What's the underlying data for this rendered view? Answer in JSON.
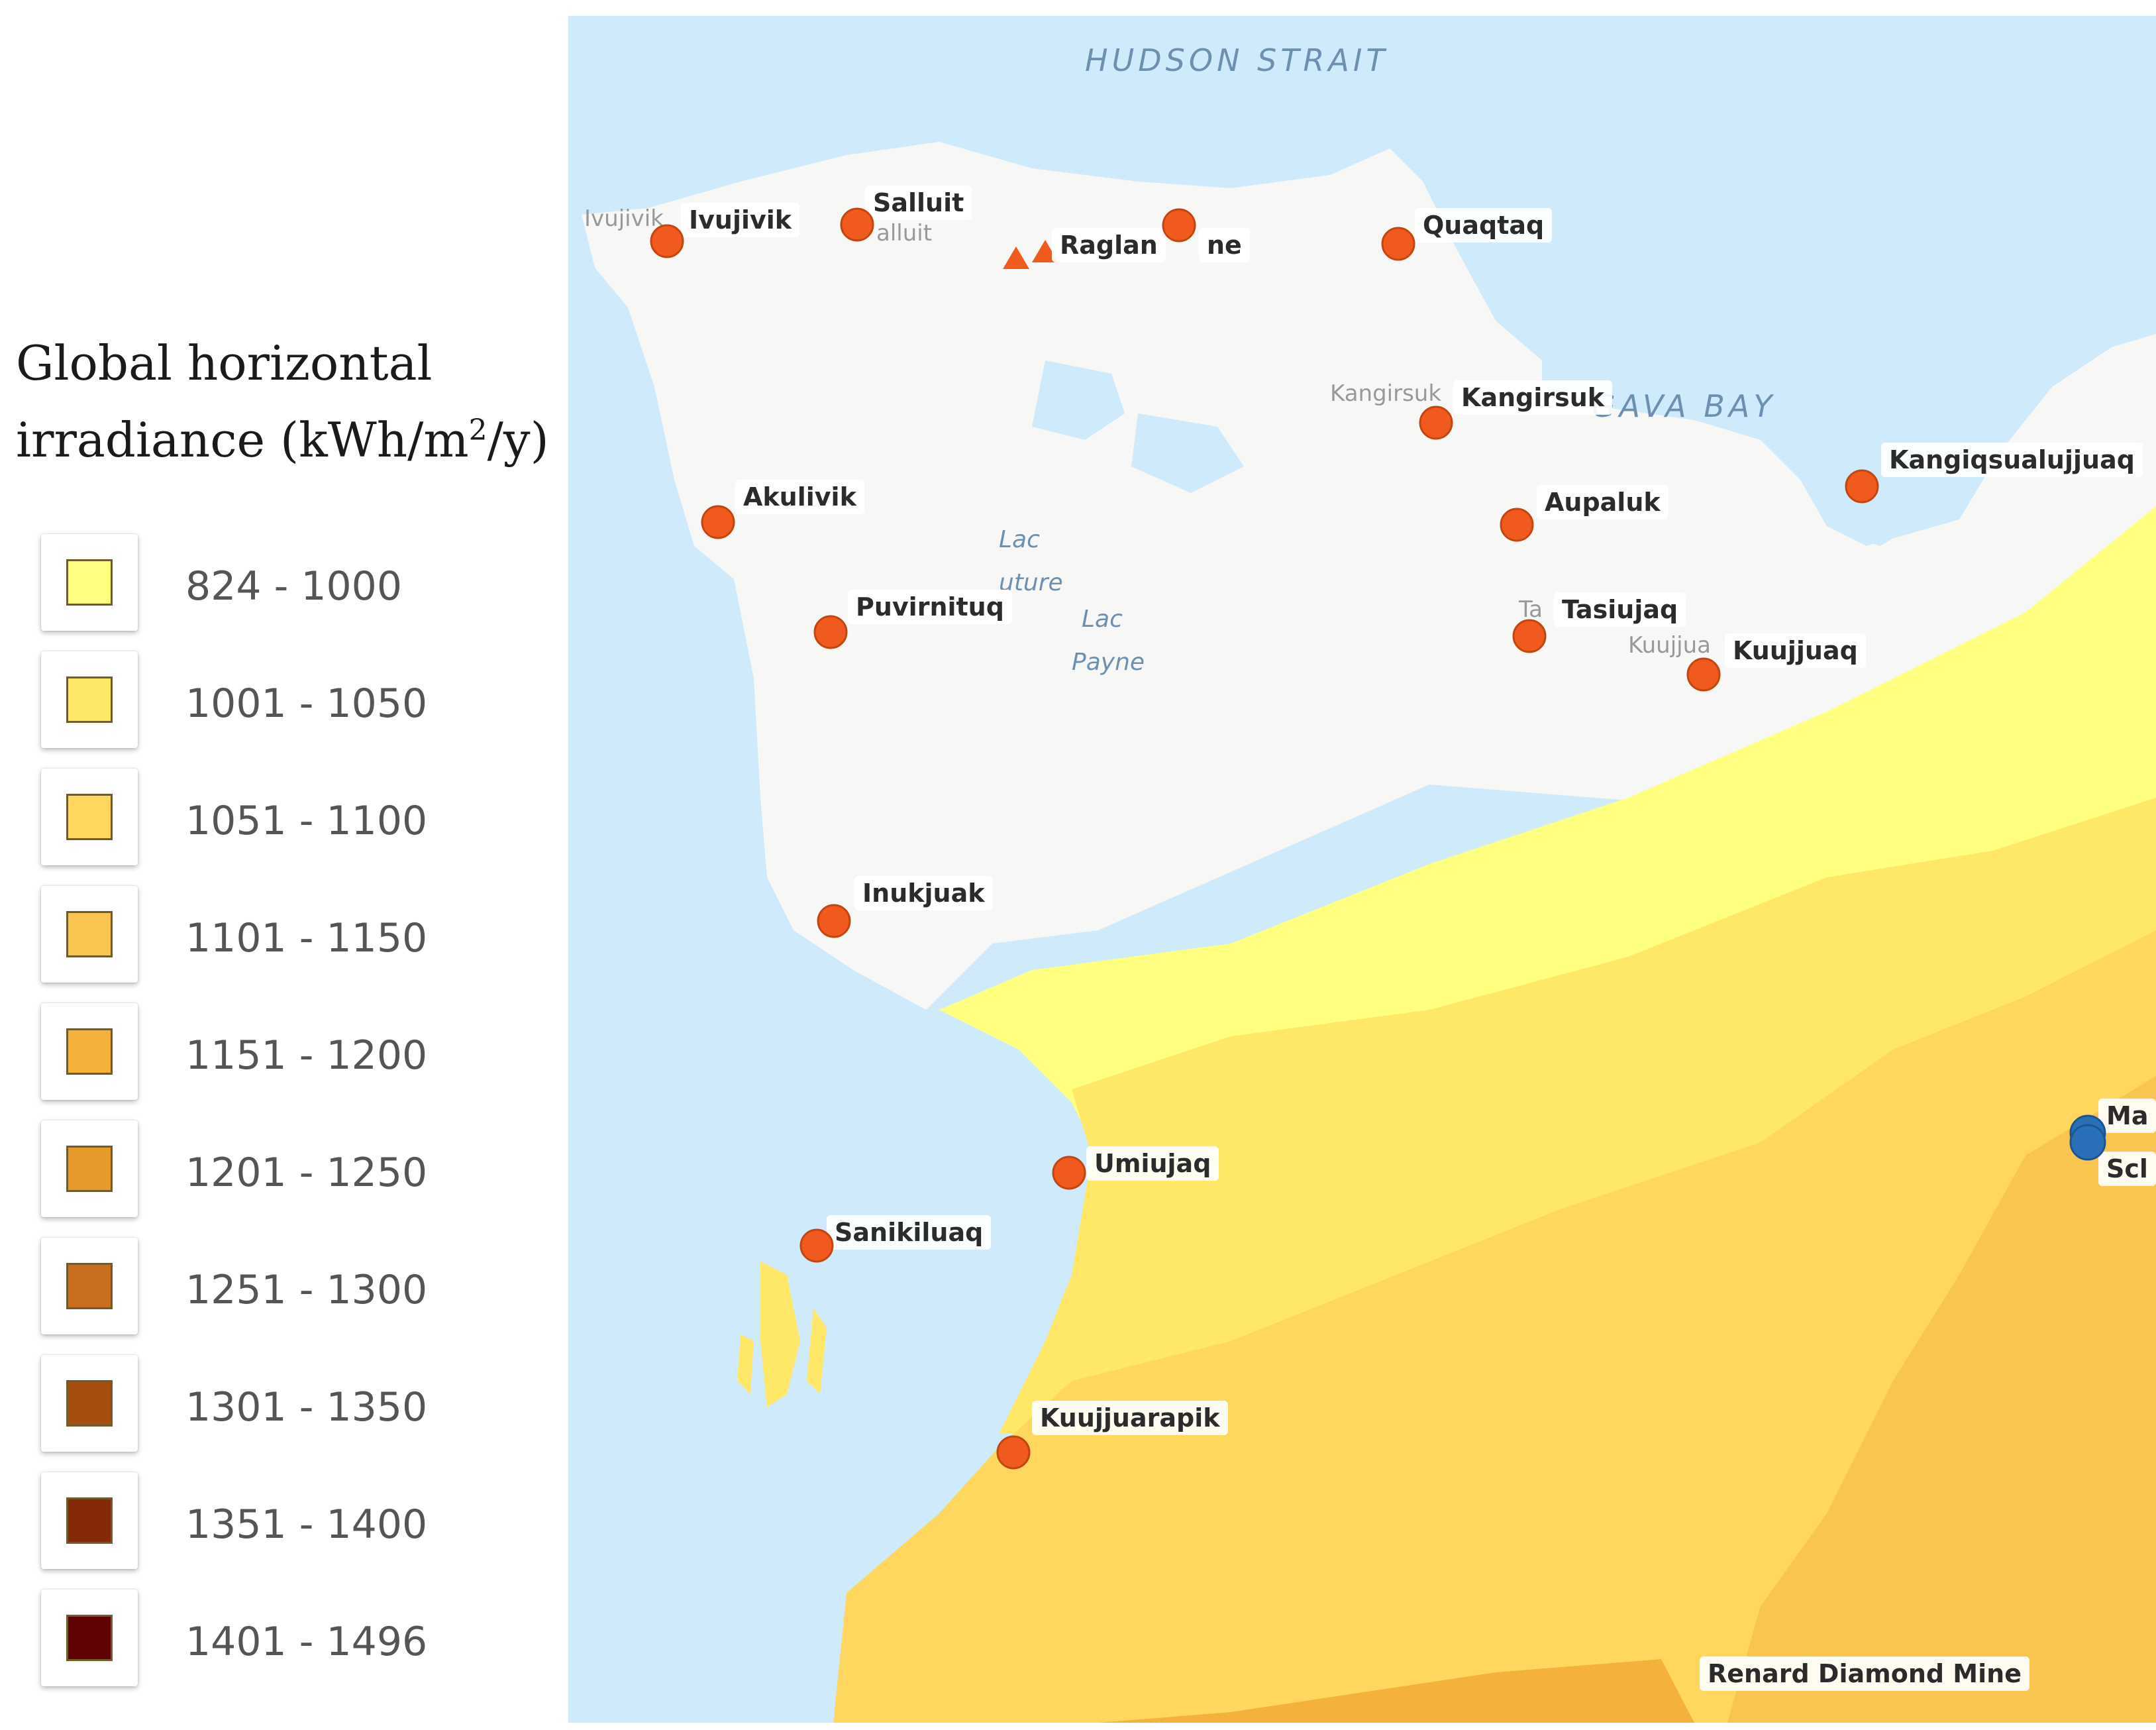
{
  "legend": {
    "title_line1": "Global horizontal",
    "title_line2_pre": "irradiance (kWh/m",
    "title_sup": "2",
    "title_line2_post": "/y)",
    "items": [
      {
        "label": "824 - 1000",
        "color": "#ffff80"
      },
      {
        "label": "1001 - 1050",
        "color": "#ffe868"
      },
      {
        "label": "1051 - 1100",
        "color": "#ffd75e"
      },
      {
        "label": "1101 - 1150",
        "color": "#f9c450"
      },
      {
        "label": "1151 - 1200",
        "color": "#f4b23c"
      },
      {
        "label": "1201 - 1250",
        "color": "#e69a2c"
      },
      {
        "label": "1251 - 1300",
        "color": "#c96e1e"
      },
      {
        "label": "1301 - 1350",
        "color": "#a64d10"
      },
      {
        "label": "1351 - 1400",
        "color": "#842a08"
      },
      {
        "label": "1401 - 1496",
        "color": "#5e0204"
      }
    ]
  },
  "map": {
    "water_labels": {
      "hudson_strait": "HUDSON STRAIT",
      "ungava_bay": "GAVA BAY",
      "lac_1": "Lac",
      "lac_1b": "uture",
      "lac_2": "Lac",
      "lac_2b": "Payne"
    },
    "communities": [
      {
        "name": "Ivujivik",
        "ghost": "Ivujivik"
      },
      {
        "name": "Salluit",
        "ghost": "alluit"
      },
      {
        "name": "Raglan",
        "ghost": ""
      },
      {
        "name": "ne",
        "ghost": ""
      },
      {
        "name": "Quaqtaq",
        "ghost": ""
      },
      {
        "name": "Kangirsuk",
        "ghost": "Kangirsuk"
      },
      {
        "name": "Kangiqsualujjuaq",
        "ghost": ""
      },
      {
        "name": "Akulivik",
        "ghost": ""
      },
      {
        "name": "Aupaluk",
        "ghost": ""
      },
      {
        "name": "Puvirnituq",
        "ghost": ""
      },
      {
        "name": "Tasiujaq",
        "ghost": "Ta"
      },
      {
        "name": "Kuujjuaq",
        "ghost": "Kuujjua"
      },
      {
        "name": "Inukjuak",
        "ghost": ""
      },
      {
        "name": "Umiujaq",
        "ghost": ""
      },
      {
        "name": "Sanikiluaq",
        "ghost": ""
      },
      {
        "name": "Kuujjuarapik",
        "ghost": ""
      }
    ],
    "mines": [
      {
        "name": "Ma"
      },
      {
        "name": "Scl"
      },
      {
        "name": "Renard Diamond Mine"
      }
    ],
    "colors": {
      "water": "#cfeafb",
      "land": "#f7f7f5",
      "community_marker": "#f05a1e",
      "mine_marker": "#2a70b8"
    }
  }
}
